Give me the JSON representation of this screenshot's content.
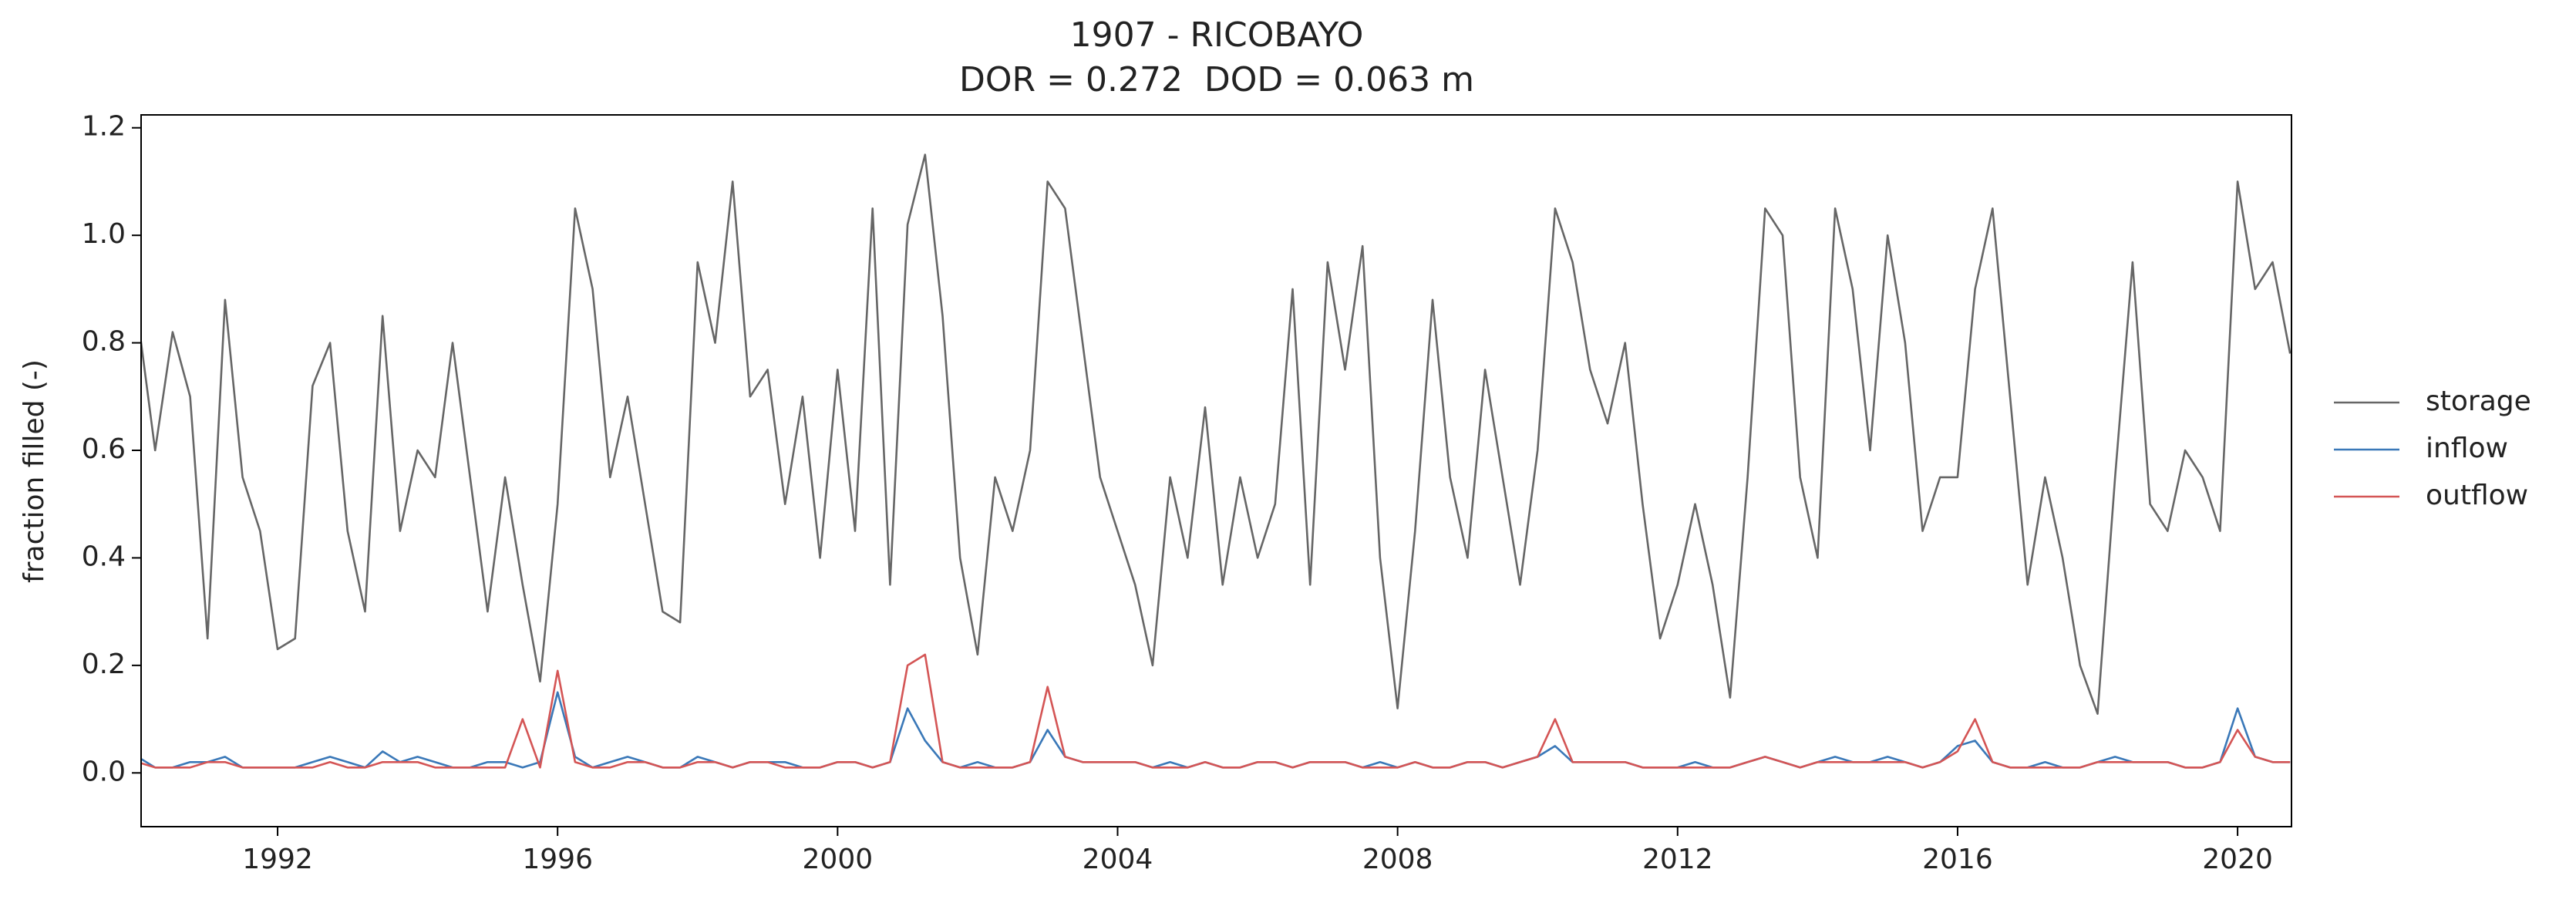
{
  "chart_data": {
    "type": "line",
    "title": "1907 - RICOBAYO",
    "subtitle": "DOR = 0.272  DOD = 0.063 m",
    "y_label": "fraction filled (-)",
    "x": [
      1990,
      1990.25,
      1990.5,
      1990.75,
      1991,
      1991.25,
      1991.5,
      1991.75,
      1992,
      1992.25,
      1992.5,
      1992.75,
      1993,
      1993.25,
      1993.5,
      1993.75,
      1994,
      1994.25,
      1994.5,
      1994.75,
      1995,
      1995.25,
      1995.5,
      1995.75,
      1996,
      1996.25,
      1996.5,
      1996.75,
      1997,
      1997.25,
      1997.5,
      1997.75,
      1998,
      1998.25,
      1998.5,
      1998.75,
      1999,
      1999.25,
      1999.5,
      1999.75,
      2000,
      2000.25,
      2000.5,
      2000.75,
      2001,
      2001.25,
      2001.5,
      2001.75,
      2002,
      2002.25,
      2002.5,
      2002.75,
      2003,
      2003.25,
      2003.5,
      2003.75,
      2004,
      2004.25,
      2004.5,
      2004.75,
      2005,
      2005.25,
      2005.5,
      2005.75,
      2006,
      2006.25,
      2006.5,
      2006.75,
      2007,
      2007.25,
      2007.5,
      2007.75,
      2008,
      2008.25,
      2008.5,
      2008.75,
      2009,
      2009.25,
      2009.5,
      2009.75,
      2010,
      2010.25,
      2010.5,
      2010.75,
      2011,
      2011.25,
      2011.5,
      2011.75,
      2012,
      2012.25,
      2012.5,
      2012.75,
      2013,
      2013.25,
      2013.5,
      2013.75,
      2014,
      2014.25,
      2014.5,
      2014.75,
      2015,
      2015.25,
      2015.5,
      2015.75,
      2016,
      2016.25,
      2016.5,
      2016.75,
      2017,
      2017.25,
      2017.5,
      2017.75,
      2018,
      2018.25,
      2018.5,
      2018.75,
      2019,
      2019.25,
      2019.5,
      2019.75,
      2020,
      2020.25,
      2020.5,
      2020.75
    ],
    "series": [
      {
        "name": "storage",
        "color": "#666666",
        "values": [
          0.85,
          0.6,
          0.82,
          0.7,
          0.25,
          0.88,
          0.55,
          0.45,
          0.23,
          0.25,
          0.72,
          0.8,
          0.45,
          0.3,
          0.85,
          0.45,
          0.6,
          0.55,
          0.8,
          0.55,
          0.3,
          0.55,
          0.35,
          0.17,
          0.5,
          1.05,
          0.9,
          0.55,
          0.7,
          0.5,
          0.3,
          0.28,
          0.95,
          0.8,
          1.1,
          0.7,
          0.75,
          0.5,
          0.7,
          0.4,
          0.75,
          0.45,
          1.05,
          0.35,
          1.02,
          1.15,
          0.85,
          0.4,
          0.22,
          0.55,
          0.45,
          0.6,
          1.1,
          1.05,
          0.8,
          0.55,
          0.45,
          0.35,
          0.2,
          0.55,
          0.4,
          0.68,
          0.35,
          0.55,
          0.4,
          0.5,
          0.9,
          0.35,
          0.95,
          0.75,
          0.98,
          0.4,
          0.12,
          0.45,
          0.88,
          0.55,
          0.4,
          0.75,
          0.55,
          0.35,
          0.6,
          1.05,
          0.95,
          0.75,
          0.65,
          0.8,
          0.5,
          0.25,
          0.35,
          0.5,
          0.35,
          0.14,
          0.55,
          1.05,
          1.0,
          0.55,
          0.4,
          1.05,
          0.9,
          0.6,
          1.0,
          0.8,
          0.45,
          0.55,
          0.55,
          0.9,
          1.05,
          0.7,
          0.35,
          0.55,
          0.4,
          0.2,
          0.11,
          0.55,
          0.95,
          0.5,
          0.45,
          0.6,
          0.55,
          0.45,
          1.1,
          0.9,
          0.95,
          0.78
        ]
      },
      {
        "name": "inflow",
        "color": "#3a78b8",
        "values": [
          0.03,
          0.01,
          0.01,
          0.02,
          0.02,
          0.03,
          0.01,
          0.01,
          0.01,
          0.01,
          0.02,
          0.03,
          0.02,
          0.01,
          0.04,
          0.02,
          0.03,
          0.02,
          0.01,
          0.01,
          0.02,
          0.02,
          0.01,
          0.02,
          0.15,
          0.03,
          0.01,
          0.02,
          0.03,
          0.02,
          0.01,
          0.01,
          0.03,
          0.02,
          0.01,
          0.02,
          0.02,
          0.02,
          0.01,
          0.01,
          0.02,
          0.02,
          0.01,
          0.02,
          0.12,
          0.06,
          0.02,
          0.01,
          0.02,
          0.01,
          0.01,
          0.02,
          0.08,
          0.03,
          0.02,
          0.02,
          0.02,
          0.02,
          0.01,
          0.02,
          0.01,
          0.02,
          0.01,
          0.01,
          0.02,
          0.02,
          0.01,
          0.02,
          0.02,
          0.02,
          0.01,
          0.02,
          0.01,
          0.02,
          0.01,
          0.01,
          0.02,
          0.02,
          0.01,
          0.02,
          0.03,
          0.05,
          0.02,
          0.02,
          0.02,
          0.02,
          0.01,
          0.01,
          0.01,
          0.02,
          0.01,
          0.01,
          0.02,
          0.03,
          0.02,
          0.01,
          0.02,
          0.03,
          0.02,
          0.02,
          0.03,
          0.02,
          0.01,
          0.02,
          0.05,
          0.06,
          0.02,
          0.01,
          0.01,
          0.02,
          0.01,
          0.01,
          0.02,
          0.03,
          0.02,
          0.02,
          0.02,
          0.01,
          0.01,
          0.02,
          0.12,
          0.03,
          0.02,
          0.02
        ]
      },
      {
        "name": "outflow",
        "color": "#d45555",
        "values": [
          0.02,
          0.01,
          0.01,
          0.01,
          0.02,
          0.02,
          0.01,
          0.01,
          0.01,
          0.01,
          0.01,
          0.02,
          0.01,
          0.01,
          0.02,
          0.02,
          0.02,
          0.01,
          0.01,
          0.01,
          0.01,
          0.01,
          0.1,
          0.01,
          0.19,
          0.02,
          0.01,
          0.01,
          0.02,
          0.02,
          0.01,
          0.01,
          0.02,
          0.02,
          0.01,
          0.02,
          0.02,
          0.01,
          0.01,
          0.01,
          0.02,
          0.02,
          0.01,
          0.02,
          0.2,
          0.22,
          0.02,
          0.01,
          0.01,
          0.01,
          0.01,
          0.02,
          0.16,
          0.03,
          0.02,
          0.02,
          0.02,
          0.02,
          0.01,
          0.01,
          0.01,
          0.02,
          0.01,
          0.01,
          0.02,
          0.02,
          0.01,
          0.02,
          0.02,
          0.02,
          0.01,
          0.01,
          0.01,
          0.02,
          0.01,
          0.01,
          0.02,
          0.02,
          0.01,
          0.02,
          0.03,
          0.1,
          0.02,
          0.02,
          0.02,
          0.02,
          0.01,
          0.01,
          0.01,
          0.01,
          0.01,
          0.01,
          0.02,
          0.03,
          0.02,
          0.01,
          0.02,
          0.02,
          0.02,
          0.02,
          0.02,
          0.02,
          0.01,
          0.02,
          0.04,
          0.1,
          0.02,
          0.01,
          0.01,
          0.01,
          0.01,
          0.01,
          0.02,
          0.02,
          0.02,
          0.02,
          0.02,
          0.01,
          0.01,
          0.02,
          0.08,
          0.03,
          0.02,
          0.02
        ]
      }
    ],
    "xlim": [
      1990.05,
      2020.77
    ],
    "xticks": [
      1992,
      1996,
      2000,
      2004,
      2008,
      2012,
      2016,
      2020
    ],
    "ylim": [
      -0.1,
      1.224
    ],
    "yticks": [
      {
        "value": 0,
        "label": "0.0"
      },
      0.2,
      0.4,
      0.6,
      0.8,
      {
        "value": 1,
        "label": "1.0"
      },
      1.2
    ],
    "grid": false,
    "legend": "right"
  }
}
